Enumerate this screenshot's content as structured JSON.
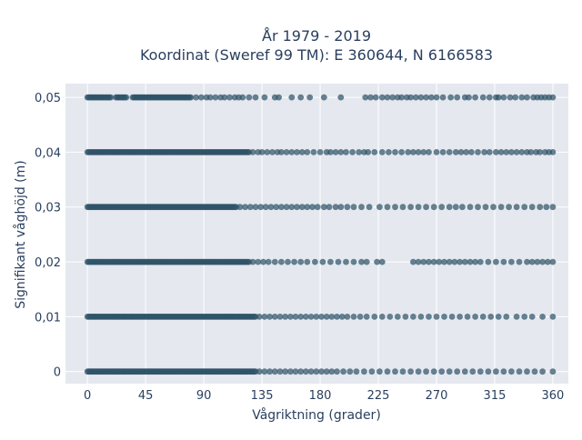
{
  "chart_data": {
    "type": "scatter",
    "title_line1": "År 1979 - 2019",
    "title_line2": "Koordinat (Sweref 99 TM): E 360644, N 6166583",
    "xlabel": "Vågriktning (grader)",
    "ylabel": "Signifikant våghöjd (m)",
    "xlim": [
      -17,
      372
    ],
    "ylim": [
      -0.0022,
      0.0525
    ],
    "x_ticks": [
      0,
      45,
      90,
      135,
      180,
      225,
      270,
      315,
      360
    ],
    "x_tick_labels": [
      "0",
      "45",
      "90",
      "135",
      "180",
      "225",
      "270",
      "315",
      "360"
    ],
    "y_ticks": [
      0,
      0.01,
      0.02,
      0.03,
      0.04,
      0.05
    ],
    "y_tick_labels": [
      "0",
      "0,01",
      "0,02",
      "0,03",
      "0,04",
      "0,05"
    ],
    "grid": true,
    "legend": "none",
    "colors": {
      "marker": "#2f5368",
      "plot_bg": "#e5e8ef",
      "grid": "#ffffff",
      "text": "#2a3f5f"
    },
    "series": [
      {
        "y": 0.05,
        "dense_ranges": [
          [
            0,
            18
          ],
          [
            22,
            30
          ],
          [
            35,
            80
          ]
        ],
        "sparse_x": [
          84,
          88,
          92,
          95,
          99,
          103,
          106,
          110,
          114,
          117,
          120,
          125,
          130,
          137,
          145,
          148,
          158,
          165,
          172,
          183,
          196,
          215,
          219,
          223,
          228,
          232,
          236,
          240,
          243,
          247,
          250,
          254,
          258,
          262,
          266,
          270,
          275,
          281,
          286,
          292,
          295,
          300,
          306,
          311,
          316,
          318,
          322,
          327,
          331,
          336,
          340,
          345,
          348,
          351,
          354,
          357,
          360
        ]
      },
      {
        "y": 0.04,
        "dense_ranges": [
          [
            0,
            125
          ]
        ],
        "sparse_x": [
          128,
          132,
          135,
          139,
          143,
          147,
          150,
          154,
          158,
          162,
          166,
          170,
          175,
          180,
          185,
          188,
          192,
          196,
          200,
          205,
          210,
          214,
          217,
          222,
          228,
          233,
          238,
          243,
          248,
          252,
          256,
          260,
          264,
          270,
          275,
          280,
          285,
          289,
          293,
          297,
          302,
          307,
          311,
          316,
          320,
          324,
          328,
          332,
          336,
          340,
          343,
          347,
          350,
          354,
          357,
          360
        ]
      },
      {
        "y": 0.03,
        "dense_ranges": [
          [
            0,
            115
          ]
        ],
        "sparse_x": [
          118,
          122,
          126,
          130,
          134,
          138,
          142,
          146,
          150,
          154,
          158,
          162,
          166,
          170,
          174,
          178,
          183,
          187,
          192,
          196,
          201,
          206,
          212,
          218,
          226,
          232,
          238,
          244,
          250,
          256,
          262,
          268,
          274,
          280,
          285,
          290,
          296,
          302,
          308,
          314,
          320,
          326,
          332,
          338,
          344,
          350,
          355,
          360
        ]
      },
      {
        "y": 0.02,
        "dense_ranges": [
          [
            0,
            125
          ]
        ],
        "sparse_x": [
          128,
          132,
          136,
          140,
          145,
          150,
          155,
          160,
          165,
          170,
          176,
          182,
          188,
          194,
          200,
          206,
          212,
          216,
          224,
          228,
          252,
          256,
          260,
          264,
          268,
          272,
          276,
          280,
          284,
          288,
          292,
          296,
          300,
          304,
          310,
          316,
          322,
          328,
          334,
          340,
          344,
          348,
          352,
          356,
          360
        ]
      },
      {
        "y": 0.01,
        "dense_ranges": [
          [
            0,
            130
          ]
        ],
        "sparse_x": [
          133,
          137,
          141,
          145,
          149,
          153,
          157,
          161,
          165,
          169,
          173,
          177,
          181,
          185,
          189,
          193,
          197,
          201,
          206,
          211,
          216,
          222,
          228,
          234,
          240,
          246,
          252,
          258,
          264,
          270,
          276,
          282,
          288,
          294,
          300,
          306,
          312,
          318,
          324,
          332,
          338,
          344,
          352,
          360
        ]
      },
      {
        "y": 0,
        "dense_ranges": [
          [
            0,
            130
          ]
        ],
        "sparse_x": [
          133,
          137,
          141,
          145,
          149,
          153,
          157,
          161,
          165,
          169,
          173,
          177,
          181,
          185,
          189,
          193,
          198,
          203,
          208,
          214,
          220,
          226,
          232,
          238,
          244,
          250,
          256,
          262,
          268,
          274,
          280,
          286,
          292,
          298,
          304,
          310,
          316,
          322,
          328,
          334,
          340,
          346,
          352,
          360
        ]
      }
    ]
  }
}
